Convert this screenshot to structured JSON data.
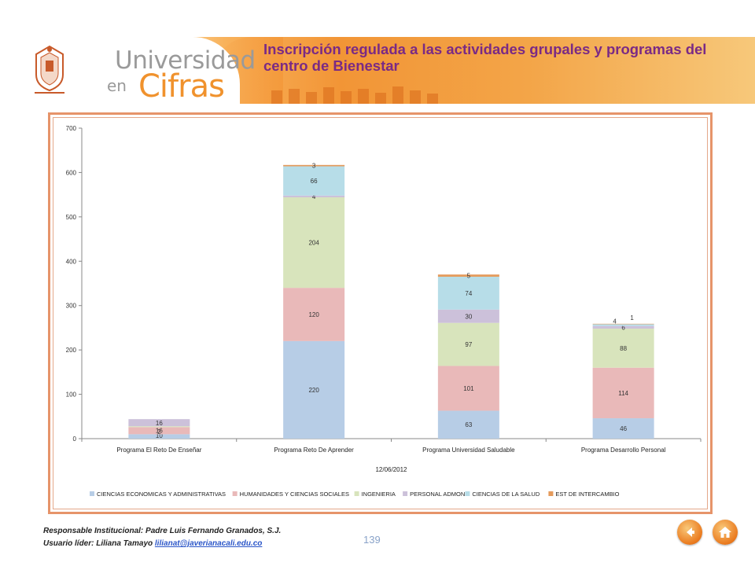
{
  "header": {
    "brand_line1": "Universidad",
    "brand_line2": "en",
    "brand_line3": "Cifras",
    "title": "Inscripción regulada a las actividades  grupales y programas del centro de Bienestar"
  },
  "chart_data": {
    "type": "bar",
    "stacked": true,
    "categories": [
      "Programa El Reto De Enseñar",
      "Programa Reto De Aprender",
      "Programa Universidad Saludable",
      "Programa Desarrollo Personal"
    ],
    "xlabel": "12/06/2012",
    "ylim": [
      0,
      700
    ],
    "yticks": [
      0,
      100,
      200,
      300,
      400,
      500,
      600,
      700
    ],
    "legend_position": "bottom",
    "grid": false,
    "series": [
      {
        "name": "CIENCIAS ECONOMICAS Y ADMINISTRATIVAS",
        "color": "#b7cde6",
        "values": [
          10,
          220,
          63,
          46
        ],
        "labels": [
          "10",
          "220",
          "63",
          "46"
        ]
      },
      {
        "name": "HUMANIDADES Y CIENCIAS SOCIALES",
        "color": "#e9b9b9",
        "values": [
          16,
          120,
          101,
          114
        ],
        "labels": [
          "16",
          "120",
          "101",
          "114"
        ]
      },
      {
        "name": "INGENIERIA",
        "color": "#d8e4bc",
        "values": [
          2,
          204,
          97,
          88
        ],
        "labels": [
          "2",
          "204",
          "97",
          "88"
        ]
      },
      {
        "name": "PERSONAL ADMON",
        "color": "#ccc1da",
        "values": [
          16,
          4,
          30,
          6
        ],
        "labels": [
          "16",
          "4",
          "30",
          "6"
        ]
      },
      {
        "name": "CIENCIAS DE LA SALUD",
        "color": "#b7dde8",
        "values": [
          0,
          66,
          74,
          4
        ],
        "labels": [
          "",
          "66",
          "74",
          "4"
        ]
      },
      {
        "name": "EST DE INTERCAMBIO",
        "color": "#e59b5c",
        "values": [
          0,
          3,
          5,
          1
        ],
        "labels": [
          "",
          "3",
          "5",
          "1"
        ]
      }
    ]
  },
  "footer": {
    "responsible": "Responsable Institucional: Padre Luis Fernando Granados, S.J.",
    "leader_label": "Usuario líder: Liliana Tamayo",
    "leader_email": "lilianat@javerianacali.edu.co",
    "page_number": "139"
  },
  "nav": {
    "back_icon": "back-arrow-icon",
    "home_icon": "home-icon"
  }
}
